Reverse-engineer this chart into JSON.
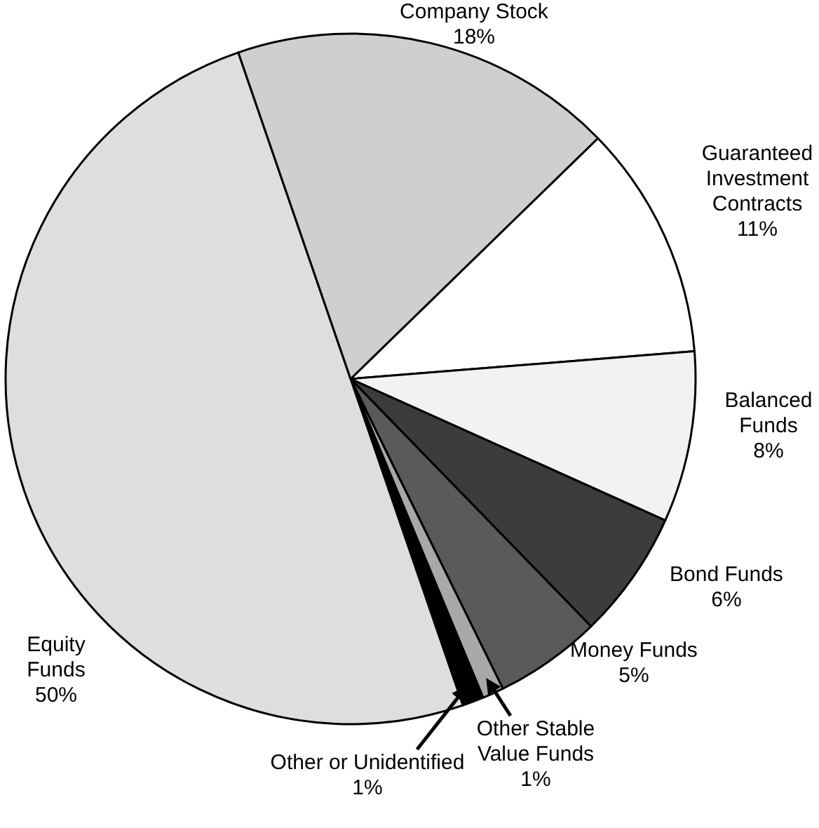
{
  "chart_data": {
    "type": "pie",
    "categories": [
      "Guaranteed Investment Contracts",
      "Balanced Funds",
      "Bond Funds",
      "Money Funds",
      "Other Stable Value Funds",
      "Other or Unidentified",
      "Equity Funds",
      "Company Stock"
    ],
    "values": [
      11,
      8,
      6,
      5,
      1,
      1,
      50,
      18
    ],
    "value_labels": [
      "11%",
      "8%",
      "6%",
      "5%",
      "1%",
      "1%",
      "50%",
      "18%"
    ],
    "colors": [
      "#ffffff",
      "#f2f2f2",
      "#3c3c3c",
      "#5a5a5a",
      "#a8a8a8",
      "#000000",
      "#dedede",
      "#cfcfcf"
    ]
  }
}
